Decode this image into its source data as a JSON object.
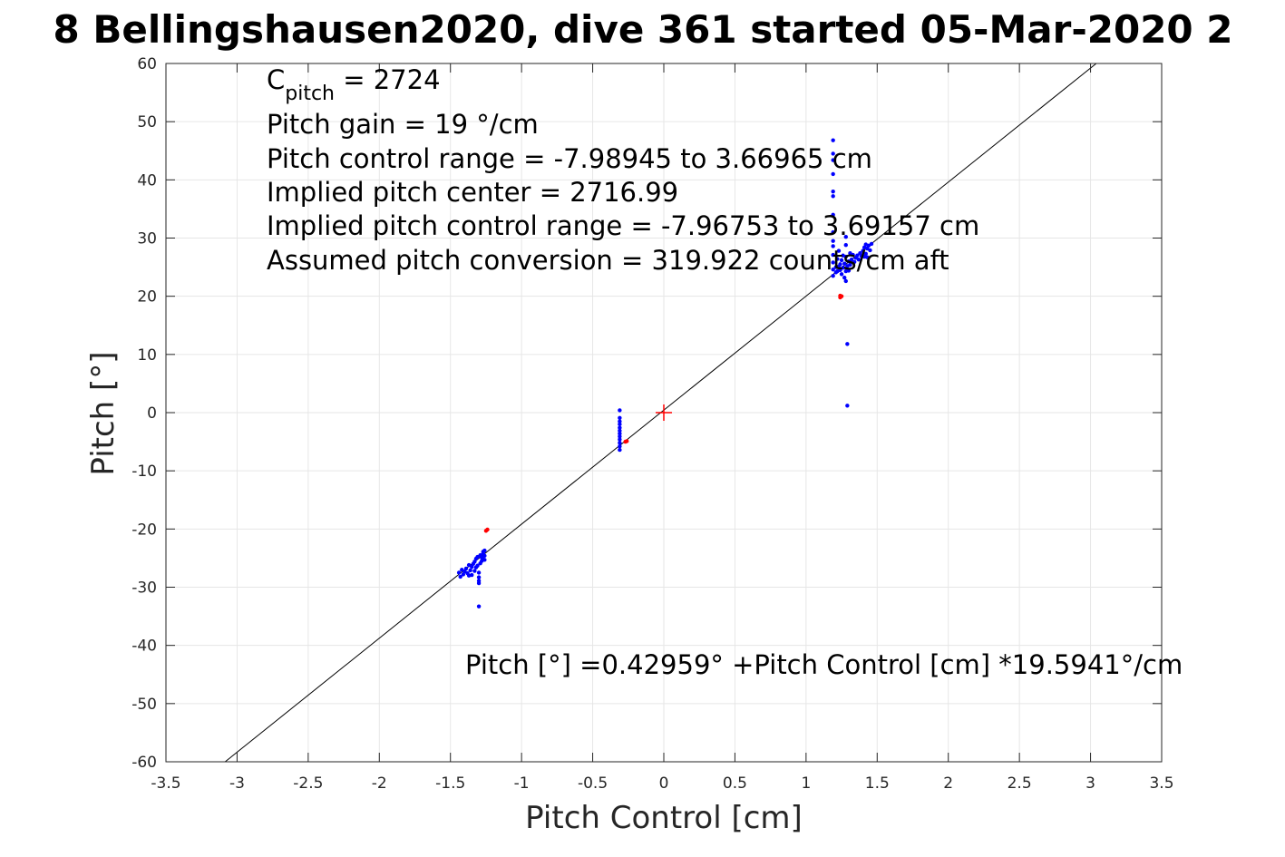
{
  "chart_data": {
    "type": "scatter",
    "title": "8 Bellingshausen2020, dive 361 started 05-Mar-2020 2",
    "xlabel": "Pitch Control [cm]",
    "ylabel": "Pitch [°]",
    "xlim": [
      -3.5,
      3.5
    ],
    "ylim": [
      -60,
      60
    ],
    "grid": true,
    "xticks": [
      -3.5,
      -3,
      -2.5,
      -2,
      -1.5,
      -1,
      -0.5,
      0,
      0.5,
      1,
      1.5,
      2,
      2.5,
      3,
      3.5
    ],
    "xtick_labels": [
      "-3.5",
      "-3",
      "-2.5",
      "-2",
      "-1.5",
      "-1",
      "-0.5",
      "0",
      "0.5",
      "1",
      "1.5",
      "2",
      "2.5",
      "3",
      "3.5"
    ],
    "yticks": [
      60,
      50,
      40,
      30,
      20,
      10,
      0,
      -10,
      -20,
      -30,
      -40,
      -50,
      -60
    ],
    "ytick_labels": [
      "60",
      "50",
      "40",
      "30",
      "20",
      "10",
      "0",
      "-10",
      "-20",
      "-30",
      "-40",
      "-50",
      "-60"
    ],
    "annotations": {
      "c_pitch": {
        "base": "C",
        "subscript": "pitch",
        "rest": " = 2724"
      },
      "lines": [
        "Pitch gain = 19 °/cm",
        "Pitch control range = -7.98945 to 3.66965 cm",
        "Implied pitch center = 2716.99",
        "Implied pitch control range = -7.96753 to 3.69157 cm",
        "Assumed pitch conversion = 319.922 counts/cm aft"
      ],
      "fit_equation": "Pitch [°] =0.42959° +Pitch Control [cm] *19.5941°/cm"
    },
    "fit_line": {
      "intercept": 0.42959,
      "slope": 19.5941,
      "color": "#000000"
    },
    "center_marker": {
      "x": 0,
      "y": 0,
      "color": "#ff0000"
    },
    "series": [
      {
        "color": "#0000ff",
        "points": [
          [
            -1.44,
            -27.5
          ],
          [
            -1.43,
            -28.2
          ],
          [
            -1.42,
            -27.0
          ],
          [
            -1.41,
            -27.8
          ],
          [
            -1.4,
            -27.3
          ],
          [
            -1.39,
            -26.8
          ],
          [
            -1.38,
            -27.6
          ],
          [
            -1.37,
            -26.2
          ],
          [
            -1.37,
            -28.0
          ],
          [
            -1.36,
            -27.1
          ],
          [
            -1.35,
            -26.5
          ],
          [
            -1.35,
            -27.9
          ],
          [
            -1.34,
            -26.0
          ],
          [
            -1.33,
            -25.6
          ],
          [
            -1.33,
            -27.2
          ],
          [
            -1.32,
            -25.1
          ],
          [
            -1.32,
            -26.6
          ],
          [
            -1.31,
            -24.8
          ],
          [
            -1.31,
            -26.3
          ],
          [
            -1.3,
            -27.5
          ],
          [
            -1.3,
            -28.3
          ],
          [
            -1.3,
            -28.9
          ],
          [
            -1.3,
            -29.3
          ],
          [
            -1.29,
            -24.5
          ],
          [
            -1.29,
            -25.9
          ],
          [
            -1.28,
            -24.9
          ],
          [
            -1.28,
            -25.5
          ],
          [
            -1.27,
            -24.2
          ],
          [
            -1.27,
            -25.2
          ],
          [
            -1.27,
            -23.9
          ],
          [
            -1.26,
            -24.6
          ],
          [
            -1.26,
            -25.3
          ],
          [
            -1.26,
            -23.7
          ],
          [
            -1.3,
            -33.3
          ],
          [
            -0.31,
            0.4
          ],
          [
            -0.31,
            -0.9
          ],
          [
            -0.31,
            -1.5
          ],
          [
            -0.31,
            -2.0
          ],
          [
            -0.31,
            -2.6
          ],
          [
            -0.31,
            -3.1
          ],
          [
            -0.31,
            -3.6
          ],
          [
            -0.31,
            -4.1
          ],
          [
            -0.31,
            -4.6
          ],
          [
            -0.31,
            -5.2
          ],
          [
            -0.31,
            -5.8
          ],
          [
            -0.31,
            -6.4
          ],
          [
            1.19,
            46.8
          ],
          [
            1.19,
            44.5
          ],
          [
            1.19,
            43.4
          ],
          [
            1.19,
            41.0
          ],
          [
            1.19,
            38.0
          ],
          [
            1.19,
            37.2
          ],
          [
            1.19,
            34.0
          ],
          [
            1.19,
            31.0
          ],
          [
            1.19,
            29.5
          ],
          [
            1.19,
            28.6
          ],
          [
            1.19,
            27.1
          ],
          [
            1.19,
            25.8
          ],
          [
            1.19,
            24.6
          ],
          [
            1.19,
            23.5
          ],
          [
            1.21,
            24.1
          ],
          [
            1.21,
            25.0
          ],
          [
            1.22,
            24.3
          ],
          [
            1.22,
            26.4
          ],
          [
            1.23,
            25.1
          ],
          [
            1.23,
            27.8
          ],
          [
            1.24,
            24.5
          ],
          [
            1.24,
            25.5
          ],
          [
            1.25,
            26.2
          ],
          [
            1.25,
            23.8
          ],
          [
            1.26,
            24.9
          ],
          [
            1.26,
            27.0
          ],
          [
            1.27,
            25.6
          ],
          [
            1.27,
            23.2
          ],
          [
            1.28,
            24.3
          ],
          [
            1.28,
            26.8
          ],
          [
            1.28,
            22.6
          ],
          [
            1.28,
            28.8
          ],
          [
            1.28,
            30.2
          ],
          [
            1.29,
            25.2
          ],
          [
            1.29,
            11.8
          ],
          [
            1.29,
            1.2
          ],
          [
            1.3,
            26.0
          ],
          [
            1.3,
            24.4
          ],
          [
            1.31,
            25.4
          ],
          [
            1.31,
            27.4
          ],
          [
            1.32,
            26.3
          ],
          [
            1.33,
            27.1
          ],
          [
            1.34,
            25.9
          ],
          [
            1.35,
            26.6
          ],
          [
            1.36,
            27.0
          ],
          [
            1.37,
            26.3
          ],
          [
            1.38,
            27.4
          ],
          [
            1.39,
            26.9
          ],
          [
            1.4,
            27.8
          ],
          [
            1.41,
            28.4
          ],
          [
            1.41,
            26.8
          ],
          [
            1.42,
            28.9
          ],
          [
            1.42,
            27.3
          ],
          [
            1.43,
            28.2
          ],
          [
            1.43,
            26.7
          ],
          [
            1.44,
            28.7
          ],
          [
            1.45,
            27.9
          ],
          [
            1.46,
            29.0
          ]
        ]
      },
      {
        "color": "#ff0000",
        "points": [
          [
            -1.24,
            -20.1
          ],
          [
            -1.25,
            -20.3
          ],
          [
            -0.27,
            -5.0
          ],
          [
            -0.26,
            -4.9
          ],
          [
            1.24,
            20.1
          ],
          [
            1.25,
            20.0
          ],
          [
            1.24,
            19.8
          ]
        ]
      }
    ]
  }
}
